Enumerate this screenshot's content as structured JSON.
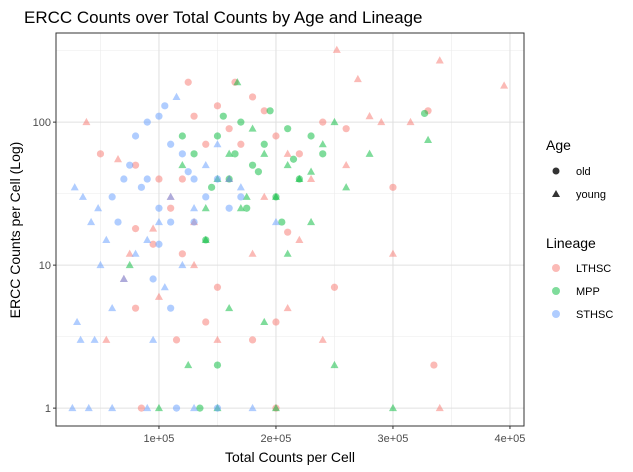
{
  "chart_data": {
    "type": "scatter",
    "title": "ERCC Counts over Total Counts by Age and Lineage",
    "xlabel": "Total Counts per Cell",
    "ylabel": "ERCC Counts per Cell (Log)",
    "xlim": [
      12000,
      412000
    ],
    "ylim": [
      0.75,
      420
    ],
    "yscale": "log",
    "x_ticks": [
      100000,
      200000,
      300000,
      400000
    ],
    "x_tick_labels": [
      "1e+05",
      "2e+05",
      "3e+05",
      "4e+05"
    ],
    "y_ticks": [
      1,
      10,
      100
    ],
    "y_tick_labels": [
      "1",
      "10",
      "100"
    ],
    "grid": true,
    "legend_placement": "right",
    "legends": {
      "age": {
        "title": "Age",
        "items": [
          {
            "label": "old",
            "shape": "circle"
          },
          {
            "label": "young",
            "shape": "triangle"
          }
        ]
      },
      "lineage": {
        "title": "Lineage",
        "items": [
          {
            "label": "LTHSC",
            "color": "#F8766D"
          },
          {
            "label": "MPP",
            "color": "#00BA38"
          },
          {
            "label": "STHSC",
            "color": "#619CFF"
          }
        ]
      }
    },
    "series": [
      {
        "name": "LTHSC",
        "color": "#F8766D",
        "points": [
          [
            50000,
            60,
            "circle"
          ],
          [
            80000,
            50,
            "circle"
          ],
          [
            100000,
            40,
            "circle"
          ],
          [
            110000,
            25,
            "circle"
          ],
          [
            120000,
            40,
            "circle"
          ],
          [
            130000,
            110,
            "circle"
          ],
          [
            140000,
            70,
            "circle"
          ],
          [
            150000,
            130,
            "circle"
          ],
          [
            160000,
            90,
            "circle"
          ],
          [
            170000,
            70,
            "circle"
          ],
          [
            180000,
            150,
            "circle"
          ],
          [
            190000,
            120,
            "circle"
          ],
          [
            200000,
            80,
            "circle"
          ],
          [
            220000,
            60,
            "circle"
          ],
          [
            240000,
            100,
            "circle"
          ],
          [
            260000,
            90,
            "circle"
          ],
          [
            300000,
            35,
            "circle"
          ],
          [
            330000,
            120,
            "circle"
          ],
          [
            125000,
            190,
            "circle"
          ],
          [
            165000,
            190,
            "circle"
          ],
          [
            80000,
            18,
            "circle"
          ],
          [
            95000,
            14,
            "circle"
          ],
          [
            120000,
            12,
            "circle"
          ],
          [
            150000,
            7,
            "circle"
          ],
          [
            80000,
            5,
            "circle"
          ],
          [
            180000,
            3,
            "circle"
          ],
          [
            200000,
            4,
            "circle"
          ],
          [
            335000,
            2,
            "circle"
          ],
          [
            210000,
            17,
            "circle"
          ],
          [
            250000,
            7,
            "circle"
          ],
          [
            140000,
            4,
            "circle"
          ],
          [
            115000,
            3,
            "circle"
          ],
          [
            85000,
            1,
            "circle"
          ],
          [
            200000,
            1,
            "circle"
          ],
          [
            38000,
            100,
            "triangle"
          ],
          [
            65000,
            55,
            "triangle"
          ],
          [
            110000,
            30,
            "triangle"
          ],
          [
            130000,
            20,
            "triangle"
          ],
          [
            160000,
            40,
            "triangle"
          ],
          [
            190000,
            30,
            "triangle"
          ],
          [
            210000,
            60,
            "triangle"
          ],
          [
            230000,
            40,
            "triangle"
          ],
          [
            260000,
            50,
            "triangle"
          ],
          [
            290000,
            100,
            "triangle"
          ],
          [
            315000,
            100,
            "triangle"
          ],
          [
            340000,
            270,
            "triangle"
          ],
          [
            395000,
            180,
            "triangle"
          ],
          [
            252000,
            320,
            "triangle"
          ],
          [
            270000,
            200,
            "triangle"
          ],
          [
            280000,
            110,
            "triangle"
          ],
          [
            70000,
            8,
            "triangle"
          ],
          [
            100000,
            6,
            "triangle"
          ],
          [
            130000,
            10,
            "triangle"
          ],
          [
            150000,
            3,
            "triangle"
          ],
          [
            180000,
            12,
            "triangle"
          ],
          [
            210000,
            5,
            "triangle"
          ],
          [
            240000,
            3,
            "triangle"
          ],
          [
            55000,
            3,
            "triangle"
          ],
          [
            340000,
            1,
            "triangle"
          ],
          [
            75000,
            12,
            "triangle"
          ],
          [
            95000,
            18,
            "triangle"
          ],
          [
            220000,
            15,
            "triangle"
          ],
          [
            300000,
            12,
            "triangle"
          ]
        ]
      },
      {
        "name": "MPP",
        "color": "#00BA38",
        "points": [
          [
            130000,
            60,
            "circle"
          ],
          [
            150000,
            80,
            "circle"
          ],
          [
            160000,
            40,
            "circle"
          ],
          [
            170000,
            100,
            "circle"
          ],
          [
            180000,
            50,
            "circle"
          ],
          [
            190000,
            70,
            "circle"
          ],
          [
            200000,
            30,
            "circle"
          ],
          [
            140000,
            15,
            "circle"
          ],
          [
            120000,
            80,
            "circle"
          ],
          [
            210000,
            90,
            "circle"
          ],
          [
            220000,
            40,
            "circle"
          ],
          [
            327000,
            115,
            "circle"
          ],
          [
            175000,
            25,
            "circle"
          ],
          [
            165000,
            60,
            "circle"
          ],
          [
            155000,
            110,
            "circle"
          ],
          [
            145000,
            35,
            "circle"
          ],
          [
            185000,
            45,
            "circle"
          ],
          [
            195000,
            120,
            "circle"
          ],
          [
            240000,
            60,
            "circle"
          ],
          [
            205000,
            20,
            "circle"
          ],
          [
            230000,
            80,
            "circle"
          ],
          [
            215000,
            55,
            "circle"
          ],
          [
            135000,
            1,
            "circle"
          ],
          [
            150000,
            2,
            "circle"
          ],
          [
            120000,
            50,
            "triangle"
          ],
          [
            140000,
            15,
            "triangle"
          ],
          [
            150000,
            40,
            "triangle"
          ],
          [
            160000,
            60,
            "triangle"
          ],
          [
            170000,
            25,
            "triangle"
          ],
          [
            180000,
            90,
            "triangle"
          ],
          [
            190000,
            60,
            "triangle"
          ],
          [
            200000,
            30,
            "triangle"
          ],
          [
            210000,
            50,
            "triangle"
          ],
          [
            220000,
            40,
            "triangle"
          ],
          [
            230000,
            20,
            "triangle"
          ],
          [
            240000,
            70,
            "triangle"
          ],
          [
            260000,
            35,
            "triangle"
          ],
          [
            280000,
            60,
            "triangle"
          ],
          [
            330000,
            75,
            "triangle"
          ],
          [
            250000,
            100,
            "triangle"
          ],
          [
            167000,
            190,
            "triangle"
          ],
          [
            75000,
            10,
            "triangle"
          ],
          [
            160000,
            5,
            "triangle"
          ],
          [
            190000,
            4,
            "triangle"
          ],
          [
            125000,
            2,
            "triangle"
          ],
          [
            250000,
            2,
            "triangle"
          ],
          [
            300000,
            1,
            "triangle"
          ],
          [
            150000,
            1,
            "triangle"
          ],
          [
            200000,
            1,
            "triangle"
          ],
          [
            100000,
            1,
            "triangle"
          ],
          [
            140000,
            25,
            "triangle"
          ],
          [
            175000,
            30,
            "triangle"
          ],
          [
            230000,
            45,
            "triangle"
          ],
          [
            210000,
            12,
            "triangle"
          ]
        ]
      },
      {
        "name": "STHSC",
        "color": "#619CFF",
        "points": [
          [
            75000,
            50,
            "circle"
          ],
          [
            80000,
            80,
            "circle"
          ],
          [
            90000,
            100,
            "circle"
          ],
          [
            100000,
            110,
            "circle"
          ],
          [
            105000,
            130,
            "circle"
          ],
          [
            110000,
            70,
            "circle"
          ],
          [
            120000,
            60,
            "circle"
          ],
          [
            130000,
            40,
            "circle"
          ],
          [
            90000,
            40,
            "circle"
          ],
          [
            60000,
            30,
            "circle"
          ],
          [
            100000,
            25,
            "circle"
          ],
          [
            110000,
            20,
            "circle"
          ],
          [
            130000,
            20,
            "circle"
          ],
          [
            140000,
            30,
            "circle"
          ],
          [
            150000,
            40,
            "circle"
          ],
          [
            160000,
            25,
            "circle"
          ],
          [
            95000,
            8,
            "circle"
          ],
          [
            110000,
            5,
            "circle"
          ],
          [
            70000,
            40,
            "circle"
          ],
          [
            65000,
            20,
            "circle"
          ],
          [
            85000,
            35,
            "circle"
          ],
          [
            125000,
            45,
            "circle"
          ],
          [
            170000,
            30,
            "circle"
          ],
          [
            100000,
            14,
            "circle"
          ],
          [
            115000,
            1,
            "circle"
          ],
          [
            150000,
            1,
            "circle"
          ],
          [
            28000,
            35,
            "triangle"
          ],
          [
            35000,
            30,
            "triangle"
          ],
          [
            42000,
            20,
            "triangle"
          ],
          [
            48000,
            25,
            "triangle"
          ],
          [
            55000,
            15,
            "triangle"
          ],
          [
            30000,
            4,
            "triangle"
          ],
          [
            33000,
            3,
            "triangle"
          ],
          [
            45000,
            3,
            "triangle"
          ],
          [
            60000,
            5,
            "triangle"
          ],
          [
            70000,
            8,
            "triangle"
          ],
          [
            80000,
            12,
            "triangle"
          ],
          [
            50000,
            10,
            "triangle"
          ],
          [
            90000,
            15,
            "triangle"
          ],
          [
            100000,
            20,
            "triangle"
          ],
          [
            110000,
            30,
            "triangle"
          ],
          [
            120000,
            10,
            "triangle"
          ],
          [
            130000,
            25,
            "triangle"
          ],
          [
            140000,
            50,
            "triangle"
          ],
          [
            150000,
            70,
            "triangle"
          ],
          [
            160000,
            40,
            "triangle"
          ],
          [
            170000,
            35,
            "triangle"
          ],
          [
            115000,
            150,
            "triangle"
          ],
          [
            200000,
            20,
            "triangle"
          ],
          [
            26000,
            1,
            "triangle"
          ],
          [
            40000,
            1,
            "triangle"
          ],
          [
            60000,
            1,
            "triangle"
          ],
          [
            90000,
            1,
            "triangle"
          ],
          [
            130000,
            1,
            "triangle"
          ],
          [
            180000,
            1,
            "triangle"
          ],
          [
            95000,
            3,
            "triangle"
          ],
          [
            105000,
            7,
            "triangle"
          ]
        ]
      }
    ]
  }
}
